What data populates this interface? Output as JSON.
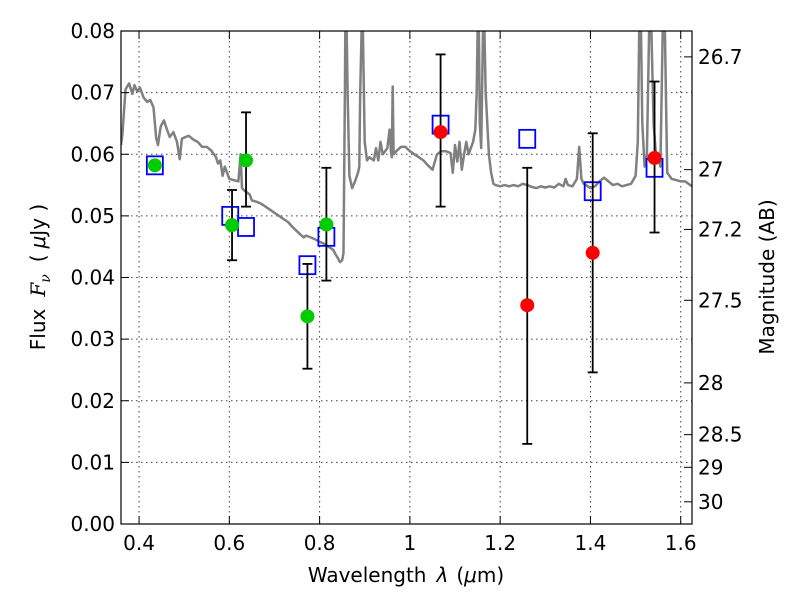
{
  "chart_data": {
    "type": "scatter",
    "xlabel_prefix": "Wavelength",
    "xlabel_symbol": "λ",
    "xlabel_unit_open": "(",
    "xlabel_unit_mu": "μ",
    "xlabel_unit_rest": "m)",
    "ylabel_prefix": "Flux",
    "ylabel_symbol": "F",
    "ylabel_sub": "ν",
    "ylabel_unit_open": "(",
    "ylabel_unit_mu": "μ",
    "ylabel_unit_rest": "Jy )",
    "y2label": "Magnitude (AB)",
    "xlim": [
      0.36,
      1.625
    ],
    "ylim": [
      0.0,
      0.08
    ],
    "x_ticks": [
      0.4,
      0.6,
      0.8,
      1.0,
      1.2,
      1.4,
      1.6
    ],
    "x_tick_labels": [
      "0.4",
      "0.6",
      "0.8",
      "1",
      "1.2",
      "1.4",
      "1.6"
    ],
    "y_ticks": [
      0.0,
      0.01,
      0.02,
      0.03,
      0.04,
      0.05,
      0.06,
      0.07,
      0.08
    ],
    "y_tick_labels": [
      "0.00",
      "0.01",
      "0.02",
      "0.03",
      "0.04",
      "0.05",
      "0.06",
      "0.07",
      "0.08"
    ],
    "y2_ticks": [
      {
        "flux": 0.0758,
        "label": "26.7"
      },
      {
        "flux": 0.0575,
        "label": "27"
      },
      {
        "flux": 0.0478,
        "label": "27.2"
      },
      {
        "flux": 0.0363,
        "label": "27.5"
      },
      {
        "flux": 0.0229,
        "label": "28"
      },
      {
        "flux": 0.0145,
        "label": "28.5"
      },
      {
        "flux": 0.0092,
        "label": "29"
      },
      {
        "flux": 0.0036,
        "label": "30"
      }
    ],
    "grid": true,
    "series": [
      {
        "kind": "model-spectrum",
        "color": "#808080",
        "points": [
          [
            0.36,
            0.0615
          ],
          [
            0.363,
            0.0632
          ],
          [
            0.37,
            0.0705
          ],
          [
            0.378,
            0.0715
          ],
          [
            0.385,
            0.0698
          ],
          [
            0.39,
            0.0712
          ],
          [
            0.396,
            0.0702
          ],
          [
            0.402,
            0.0708
          ],
          [
            0.41,
            0.0692
          ],
          [
            0.418,
            0.0685
          ],
          [
            0.425,
            0.0688
          ],
          [
            0.432,
            0.0676
          ],
          [
            0.438,
            0.0626
          ],
          [
            0.442,
            0.0615
          ],
          [
            0.448,
            0.0645
          ],
          [
            0.455,
            0.0655
          ],
          [
            0.462,
            0.064
          ],
          [
            0.468,
            0.0628
          ],
          [
            0.476,
            0.0636
          ],
          [
            0.484,
            0.062
          ],
          [
            0.49,
            0.0592
          ],
          [
            0.495,
            0.0625
          ],
          [
            0.503,
            0.0628
          ],
          [
            0.51,
            0.063
          ],
          [
            0.52,
            0.0624
          ],
          [
            0.53,
            0.062
          ],
          [
            0.54,
            0.0612
          ],
          [
            0.55,
            0.0612
          ],
          [
            0.56,
            0.0606
          ],
          [
            0.57,
            0.0596
          ],
          [
            0.575,
            0.0585
          ],
          [
            0.58,
            0.059
          ],
          [
            0.585,
            0.0565
          ],
          [
            0.59,
            0.058
          ],
          [
            0.6,
            0.056
          ],
          [
            0.61,
            0.0558
          ],
          [
            0.62,
            0.0556
          ],
          [
            0.625,
            0.06
          ],
          [
            0.628,
            0.0545
          ],
          [
            0.635,
            0.054
          ],
          [
            0.645,
            0.0535
          ],
          [
            0.65,
            0.0525
          ],
          [
            0.66,
            0.0523
          ],
          [
            0.67,
            0.052
          ],
          [
            0.68,
            0.0515
          ],
          [
            0.69,
            0.051
          ],
          [
            0.7,
            0.0505
          ],
          [
            0.71,
            0.05
          ],
          [
            0.72,
            0.0495
          ],
          [
            0.73,
            0.049
          ],
          [
            0.74,
            0.0482
          ],
          [
            0.75,
            0.0475
          ],
          [
            0.76,
            0.0468
          ],
          [
            0.765,
            0.0465
          ],
          [
            0.77,
            0.0468
          ],
          [
            0.78,
            0.0465
          ],
          [
            0.79,
            0.0462
          ],
          [
            0.8,
            0.0458
          ],
          [
            0.81,
            0.0455
          ],
          [
            0.82,
            0.045
          ],
          [
            0.83,
            0.0445
          ],
          [
            0.835,
            0.0438
          ],
          [
            0.84,
            0.0432
          ],
          [
            0.845,
            0.0425
          ],
          [
            0.85,
            0.0428
          ],
          [
            0.853,
            0.044
          ],
          [
            0.856,
            0.07
          ],
          [
            0.857,
            0.08
          ],
          [
            0.86,
            0.08
          ],
          [
            0.862,
            0.07
          ],
          [
            0.866,
            0.0565
          ],
          [
            0.872,
            0.0545
          ],
          [
            0.878,
            0.0555
          ],
          [
            0.885,
            0.057
          ],
          [
            0.888,
            0.058
          ],
          [
            0.89,
            0.07
          ],
          [
            0.893,
            0.08
          ],
          [
            0.896,
            0.08
          ],
          [
            0.9,
            0.062
          ],
          [
            0.905,
            0.059
          ],
          [
            0.91,
            0.0595
          ],
          [
            0.92,
            0.059
          ],
          [
            0.925,
            0.061
          ],
          [
            0.93,
            0.059
          ],
          [
            0.935,
            0.062
          ],
          [
            0.94,
            0.06
          ],
          [
            0.945,
            0.0605
          ],
          [
            0.95,
            0.061
          ],
          [
            0.955,
            0.064
          ],
          [
            0.958,
            0.0605
          ],
          [
            0.96,
            0.0595
          ],
          [
            0.962,
            0.071
          ],
          [
            0.964,
            0.06
          ],
          [
            0.97,
            0.0605
          ],
          [
            0.98,
            0.0612
          ],
          [
            0.99,
            0.0612
          ],
          [
            1.0,
            0.0605
          ],
          [
            1.01,
            0.06
          ],
          [
            1.02,
            0.0595
          ],
          [
            1.03,
            0.059
          ],
          [
            1.04,
            0.0582
          ],
          [
            1.05,
            0.0575
          ],
          [
            1.06,
            0.06
          ],
          [
            1.07,
            0.0605
          ],
          [
            1.08,
            0.0605
          ],
          [
            1.09,
            0.0602
          ],
          [
            1.095,
            0.057
          ],
          [
            1.1,
            0.0615
          ],
          [
            1.105,
            0.0588
          ],
          [
            1.11,
            0.062
          ],
          [
            1.115,
            0.0575
          ],
          [
            1.12,
            0.06
          ],
          [
            1.125,
            0.062
          ],
          [
            1.13,
            0.06
          ],
          [
            1.135,
            0.061
          ],
          [
            1.14,
            0.062
          ],
          [
            1.145,
            0.064
          ],
          [
            1.148,
            0.07
          ],
          [
            1.15,
            0.08
          ],
          [
            1.153,
            0.08
          ],
          [
            1.155,
            0.065
          ],
          [
            1.158,
            0.061
          ],
          [
            1.162,
            0.08
          ],
          [
            1.165,
            0.08
          ],
          [
            1.168,
            0.07
          ],
          [
            1.175,
            0.06
          ],
          [
            1.18,
            0.057
          ],
          [
            1.185,
            0.0552
          ],
          [
            1.19,
            0.055
          ],
          [
            1.2,
            0.0548
          ],
          [
            1.21,
            0.055
          ],
          [
            1.22,
            0.0548
          ],
          [
            1.23,
            0.055
          ],
          [
            1.24,
            0.0548
          ],
          [
            1.25,
            0.0552
          ],
          [
            1.26,
            0.055
          ],
          [
            1.27,
            0.0547
          ],
          [
            1.28,
            0.0545
          ],
          [
            1.29,
            0.0548
          ],
          [
            1.3,
            0.0546
          ],
          [
            1.31,
            0.0548
          ],
          [
            1.32,
            0.0546
          ],
          [
            1.33,
            0.0552
          ],
          [
            1.34,
            0.0548
          ],
          [
            1.345,
            0.056
          ],
          [
            1.35,
            0.055
          ],
          [
            1.36,
            0.0548
          ],
          [
            1.37,
            0.056
          ],
          [
            1.375,
            0.0612
          ],
          [
            1.38,
            0.056
          ],
          [
            1.385,
            0.0552
          ],
          [
            1.39,
            0.055
          ],
          [
            1.4,
            0.0545
          ],
          [
            1.41,
            0.0548
          ],
          [
            1.42,
            0.0556
          ],
          [
            1.43,
            0.0562
          ],
          [
            1.44,
            0.0556
          ],
          [
            1.45,
            0.055
          ],
          [
            1.46,
            0.0552
          ],
          [
            1.47,
            0.0548
          ],
          [
            1.48,
            0.055
          ],
          [
            1.49,
            0.0552
          ],
          [
            1.5,
            0.0565
          ],
          [
            1.505,
            0.062
          ],
          [
            1.508,
            0.08
          ],
          [
            1.512,
            0.08
          ],
          [
            1.515,
            0.065
          ],
          [
            1.52,
            0.058
          ],
          [
            1.525,
            0.06
          ],
          [
            1.53,
            0.08
          ],
          [
            1.535,
            0.08
          ],
          [
            1.54,
            0.065
          ],
          [
            1.545,
            0.06
          ],
          [
            1.55,
            0.0595
          ],
          [
            1.555,
            0.058
          ],
          [
            1.56,
            0.08
          ],
          [
            1.565,
            0.08
          ],
          [
            1.57,
            0.057
          ],
          [
            1.58,
            0.056
          ],
          [
            1.59,
            0.0558
          ],
          [
            1.6,
            0.0556
          ],
          [
            1.61,
            0.0556
          ],
          [
            1.625,
            0.0548
          ]
        ]
      },
      {
        "kind": "model-band-flux",
        "marker": "open-square",
        "color": "#0000ff",
        "points": [
          [
            0.435,
            0.0582
          ],
          [
            0.602,
            0.05
          ],
          [
            0.637,
            0.0482
          ],
          [
            0.773,
            0.042
          ],
          [
            0.815,
            0.0466
          ],
          [
            1.068,
            0.0648
          ],
          [
            1.26,
            0.0625
          ],
          [
            1.405,
            0.054
          ],
          [
            1.542,
            0.0578
          ]
        ]
      },
      {
        "kind": "observed-flux",
        "marker": "filled-circle",
        "color": "#00cc00",
        "points": [
          {
            "x": 0.435,
            "y": 0.0582,
            "err": null
          },
          {
            "x": 0.606,
            "y": 0.0485,
            "err": [
              0.0428,
              0.0542
            ]
          },
          {
            "x": 0.637,
            "y": 0.059,
            "err": [
              0.0515,
              0.0668
            ]
          },
          {
            "x": 0.773,
            "y": 0.0337,
            "err": [
              0.0252,
              0.0422
            ]
          },
          {
            "x": 0.815,
            "y": 0.0486,
            "err": [
              0.0395,
              0.0578
            ]
          }
        ]
      },
      {
        "kind": "observed-flux",
        "marker": "filled-circle",
        "color": "#ff0000",
        "points": [
          {
            "x": 1.068,
            "y": 0.0636,
            "err": [
              0.0515,
              0.0762
            ]
          },
          {
            "x": 1.26,
            "y": 0.0355,
            "err": [
              0.013,
              0.0578
            ]
          },
          {
            "x": 1.405,
            "y": 0.044,
            "err": [
              0.0246,
              0.0634
            ]
          },
          {
            "x": 1.542,
            "y": 0.0594,
            "err": [
              0.0473,
              0.0718
            ]
          }
        ]
      }
    ]
  }
}
